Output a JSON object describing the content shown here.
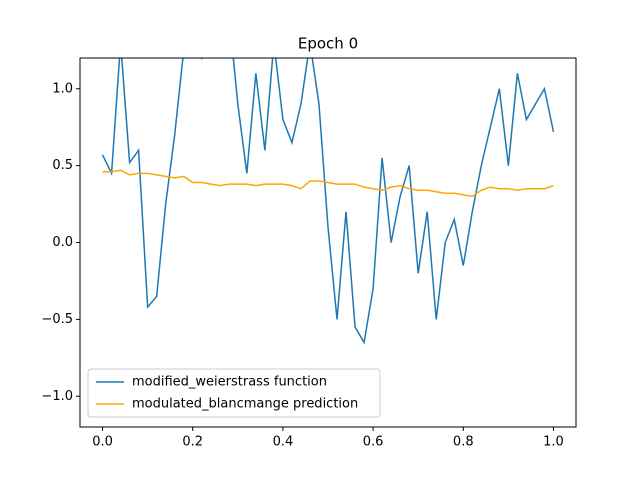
{
  "chart_data": {
    "type": "line",
    "title": "Epoch 0",
    "x": [
      0,
      0.02,
      0.04,
      0.06,
      0.08,
      0.1,
      0.12,
      0.14,
      0.16,
      0.18,
      0.2,
      0.22,
      0.24,
      0.26,
      0.28,
      0.3,
      0.32,
      0.34,
      0.36,
      0.38,
      0.4,
      0.42,
      0.44,
      0.46,
      0.48,
      0.5,
      0.52,
      0.54,
      0.56,
      0.58,
      0.6,
      0.62,
      0.64,
      0.66,
      0.68,
      0.7,
      0.72,
      0.74,
      0.76,
      0.78,
      0.8,
      0.82,
      0.84,
      0.86,
      0.88,
      0.9,
      0.92,
      0.94,
      0.96,
      0.98,
      1.0
    ],
    "series": [
      {
        "name": "modified_weierstrass function",
        "color": "#1f77b4",
        "values": [
          0.57,
          0.45,
          1.3,
          0.52,
          0.6,
          -0.42,
          -0.35,
          0.25,
          0.7,
          1.25,
          1.35,
          1.2,
          1.4,
          1.3,
          1.5,
          0.9,
          0.45,
          1.1,
          0.6,
          1.3,
          0.8,
          0.65,
          0.9,
          1.3,
          0.9,
          0.1,
          -0.5,
          0.2,
          -0.55,
          -0.65,
          -0.3,
          0.55,
          0.0,
          0.3,
          0.5,
          -0.2,
          0.2,
          -0.5,
          0.0,
          0.15,
          -0.15,
          0.2,
          0.5,
          0.75,
          1.0,
          0.5,
          1.1,
          0.8,
          0.9,
          1.0,
          0.72
        ]
      },
      {
        "name": "modulated_blancmange prediction",
        "color": "#ffa500",
        "values": [
          0.46,
          0.46,
          0.47,
          0.44,
          0.45,
          0.45,
          0.44,
          0.43,
          0.42,
          0.43,
          0.39,
          0.39,
          0.38,
          0.37,
          0.38,
          0.38,
          0.38,
          0.37,
          0.38,
          0.38,
          0.38,
          0.37,
          0.35,
          0.4,
          0.4,
          0.39,
          0.38,
          0.38,
          0.38,
          0.36,
          0.35,
          0.34,
          0.36,
          0.37,
          0.35,
          0.34,
          0.34,
          0.33,
          0.32,
          0.32,
          0.31,
          0.3,
          0.34,
          0.36,
          0.35,
          0.35,
          0.34,
          0.35,
          0.35,
          0.35,
          0.37
        ]
      }
    ],
    "xlim": [
      -0.05,
      1.05
    ],
    "ylim": [
      -1.2,
      1.2
    ],
    "xticks": [
      {
        "value": 0,
        "label": "0.0"
      },
      0.2,
      0.4,
      0.6,
      0.8,
      {
        "value": 1.0,
        "label": "1.0"
      }
    ],
    "yticks": [
      {
        "value": -1.0,
        "label": "−1.0"
      },
      {
        "value": -0.5,
        "label": "−0.5"
      },
      {
        "value": 0,
        "label": "0.0"
      },
      0.5,
      {
        "value": 1.0,
        "label": "1.0"
      }
    ],
    "legend": "lower left",
    "grid": false
  }
}
